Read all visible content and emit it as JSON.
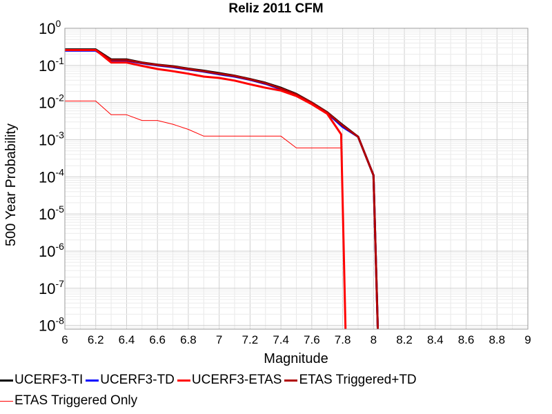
{
  "chart_data": {
    "type": "line",
    "title": "Reliz 2011 CFM",
    "xlabel": "Magnitude",
    "ylabel": "500 Year Probability",
    "xlim": [
      6,
      9
    ],
    "ylim_log10": [
      -8.1,
      0
    ],
    "y_scale": "log",
    "grid": true,
    "legend_placement": "bottom",
    "x_ticks": [
      "6",
      "6.2",
      "6.4",
      "6.6",
      "6.8",
      "7",
      "7.2",
      "7.4",
      "7.6",
      "7.8",
      "8",
      "8.2",
      "8.4",
      "8.6",
      "8.8",
      "9"
    ],
    "y_ticks": [
      {
        "base": "10",
        "exp": "0",
        "log": 0
      },
      {
        "base": "10",
        "exp": "-1",
        "log": -1
      },
      {
        "base": "10",
        "exp": "-2",
        "log": -2
      },
      {
        "base": "10",
        "exp": "-3",
        "log": -3
      },
      {
        "base": "10",
        "exp": "-4",
        "log": -4
      },
      {
        "base": "10",
        "exp": "-5",
        "log": -5
      },
      {
        "base": "10",
        "exp": "-6",
        "log": -6
      },
      {
        "base": "10",
        "exp": "-7",
        "log": -7
      },
      {
        "base": "10",
        "exp": "-8",
        "log": -8
      }
    ],
    "series": [
      {
        "name": "UCERF3-TI",
        "color": "#000000",
        "width": 3,
        "x": [
          6,
          6.2,
          6.3,
          6.4,
          6.5,
          6.6,
          6.7,
          6.8,
          6.9,
          7,
          7.1,
          7.2,
          7.3,
          7.4,
          7.5,
          7.6,
          7.7,
          7.8,
          7.9,
          8,
          8.03
        ],
        "y": [
          0.27,
          0.27,
          0.145,
          0.145,
          0.12,
          0.105,
          0.095,
          0.082,
          0.072,
          0.062,
          0.053,
          0.043,
          0.034,
          0.025,
          0.017,
          0.01,
          0.0055,
          0.0025,
          0.0012,
          0.00011,
          1e-09
        ]
      },
      {
        "name": "UCERF3-TD",
        "color": "#0000ff",
        "width": 3,
        "x": [
          6,
          6.2,
          6.3,
          6.4,
          6.5,
          6.6,
          6.7,
          6.8,
          6.9,
          7,
          7.1,
          7.2,
          7.3,
          7.4,
          7.5,
          7.6,
          7.7,
          7.8,
          7.9,
          8,
          8.03
        ],
        "y": [
          0.25,
          0.25,
          0.135,
          0.135,
          0.115,
          0.1,
          0.09,
          0.078,
          0.068,
          0.058,
          0.05,
          0.041,
          0.032,
          0.023,
          0.016,
          0.0095,
          0.0052,
          0.0022,
          0.0012,
          0.00011,
          1e-09
        ]
      },
      {
        "name": "UCERF3-ETAS",
        "color": "#ff0000",
        "width": 3,
        "x": [
          6,
          6.2,
          6.3,
          6.4,
          6.5,
          6.6,
          6.7,
          6.8,
          6.9,
          7,
          7.1,
          7.2,
          7.3,
          7.4,
          7.5,
          7.6,
          7.7,
          7.79,
          7.82
        ],
        "y": [
          0.26,
          0.26,
          0.12,
          0.12,
          0.097,
          0.08,
          0.07,
          0.06,
          0.05,
          0.046,
          0.039,
          0.031,
          0.025,
          0.021,
          0.015,
          0.009,
          0.005,
          0.0014,
          1e-09
        ]
      },
      {
        "name": "ETAS Triggered+TD",
        "color": "#b00000",
        "width": 3,
        "x": [
          6,
          6.2,
          6.3,
          6.4,
          6.5,
          6.6,
          6.7,
          6.8,
          6.9,
          7,
          7.1,
          7.2,
          7.3,
          7.4,
          7.5,
          7.6,
          7.7,
          7.8,
          7.9,
          8,
          8.03
        ],
        "y": [
          0.26,
          0.26,
          0.14,
          0.14,
          0.118,
          0.103,
          0.093,
          0.08,
          0.07,
          0.06,
          0.052,
          0.042,
          0.033,
          0.024,
          0.0165,
          0.0098,
          0.0054,
          0.0024,
          0.0012,
          0.00011,
          1e-09
        ]
      },
      {
        "name": "ETAS Triggered Only",
        "color": "#ff0000",
        "width": 1,
        "x": [
          6,
          6.2,
          6.3,
          6.4,
          6.5,
          6.6,
          6.7,
          6.8,
          6.9,
          7,
          7.1,
          7.2,
          7.3,
          7.4,
          7.5,
          7.6,
          7.7,
          7.79,
          7.82
        ],
        "y": [
          0.011,
          0.011,
          0.0047,
          0.0047,
          0.0033,
          0.0033,
          0.0026,
          0.0019,
          0.00125,
          0.00125,
          0.00125,
          0.00125,
          0.00125,
          0.00125,
          0.0006,
          0.0006,
          0.0006,
          0.0006,
          1e-09
        ]
      }
    ]
  }
}
